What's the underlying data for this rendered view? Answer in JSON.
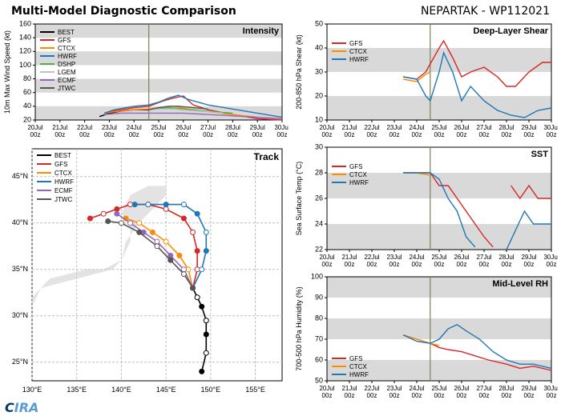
{
  "main_title": "Multi-Model Diagnostic Comparison",
  "storm_id": "NEPARTAK - WP112021",
  "title_fontsize": 14,
  "logo_text_1": "C",
  "logo_text_2": "IRA",
  "time_axis": {
    "ticks": [
      0,
      1,
      2,
      3,
      4,
      5,
      6,
      7,
      8,
      9,
      10
    ],
    "labels": [
      "20Jul\n00z",
      "21Jul\n00z",
      "22Jul\n00z",
      "23Jul\n00z",
      "24Jul\n00z",
      "25Jul\n00z",
      "26Jul\n00z",
      "27Jul\n00z",
      "28Jul\n00z",
      "29Jul\n00z",
      "30Jul\n00z"
    ],
    "now_line": 4.6
  },
  "colors": {
    "BEST": "#000000",
    "GFS": "#d62728",
    "CTCX": "#ff8c00",
    "HWRF": "#1f77b4",
    "DSHP": "#4daf4a",
    "LGEM": "#c0c0c0",
    "ECMF": "#9467bd",
    "JTWC": "#555555",
    "band": "#d9d9d9",
    "grid": "#bfbfbf",
    "axis": "#000000",
    "bg": "#ffffff",
    "now": "#7f7f5a"
  },
  "panels": {
    "intensity": {
      "title": "Intensity",
      "ylabel": "10m Max Wind Speed (kt)",
      "ylim": [
        20,
        160
      ],
      "ytick_step": 20,
      "bands": [
        [
          20,
          40
        ],
        [
          60,
          80
        ],
        [
          100,
          120
        ],
        [
          140,
          160
        ]
      ],
      "line_width": 1.4,
      "label_fontsize": 9,
      "series": {
        "BEST": [
          [
            2.6,
            25
          ],
          [
            3.0,
            30
          ],
          [
            3.5,
            33
          ],
          [
            4.0,
            35
          ],
          [
            4.4,
            35
          ],
          [
            4.6,
            35
          ]
        ],
        "GFS": [
          [
            2.8,
            30
          ],
          [
            3.2,
            33
          ],
          [
            4.0,
            38
          ],
          [
            4.6,
            40
          ],
          [
            5.2,
            48
          ],
          [
            5.6,
            52
          ],
          [
            6.0,
            55
          ],
          [
            6.4,
            42
          ],
          [
            7.0,
            35
          ],
          [
            8.0,
            28
          ],
          [
            9.0,
            22
          ],
          [
            10.0,
            20
          ]
        ],
        "CTCX": [
          [
            2.8,
            30
          ],
          [
            3.2,
            32
          ],
          [
            4.0,
            35
          ],
          [
            4.6,
            36
          ],
          [
            5.0,
            38
          ],
          [
            5.6,
            40
          ],
          [
            6.2,
            36
          ],
          [
            7.0,
            32
          ],
          [
            8.0,
            28
          ],
          [
            9.0,
            24
          ]
        ],
        "HWRF": [
          [
            2.8,
            30
          ],
          [
            3.2,
            35
          ],
          [
            4.0,
            40
          ],
          [
            4.6,
            42
          ],
          [
            5.0,
            46
          ],
          [
            5.4,
            52
          ],
          [
            5.8,
            56
          ],
          [
            6.2,
            50
          ],
          [
            7.0,
            42
          ],
          [
            8.0,
            36
          ],
          [
            9.0,
            30
          ],
          [
            10.0,
            24
          ]
        ],
        "DSHP": [
          [
            4.6,
            35
          ],
          [
            5.0,
            37
          ],
          [
            5.4,
            38
          ],
          [
            6.0,
            36
          ],
          [
            6.6,
            34
          ],
          [
            7.2,
            32
          ],
          [
            8.0,
            30
          ]
        ],
        "LGEM": [
          [
            4.6,
            35
          ],
          [
            5.0,
            36
          ],
          [
            5.6,
            36
          ],
          [
            6.2,
            34
          ],
          [
            7.0,
            32
          ],
          [
            7.6,
            30
          ]
        ],
        "ECMF": [
          [
            2.8,
            28
          ],
          [
            3.5,
            30
          ],
          [
            4.2,
            30
          ],
          [
            5.0,
            30
          ],
          [
            6.0,
            30
          ],
          [
            7.0,
            28
          ],
          [
            8.0,
            26
          ],
          [
            9.0,
            24
          ],
          [
            10.0,
            22
          ]
        ],
        "JTWC": [
          [
            4.6,
            35
          ],
          [
            5.0,
            38
          ],
          [
            5.4,
            40
          ],
          [
            5.8,
            40
          ],
          [
            6.4,
            38
          ],
          [
            7.0,
            36
          ]
        ]
      },
      "legend": [
        "BEST",
        "GFS",
        "CTCX",
        "HWRF",
        "DSHP",
        "LGEM",
        "ECMF",
        "JTWC"
      ]
    },
    "shear": {
      "title": "Deep-Layer Shear",
      "ylabel": "200-850 hPa Shear (kt)",
      "ylim": [
        10,
        50
      ],
      "ytick_step": 10,
      "bands": [
        [
          10,
          20
        ],
        [
          30,
          40
        ]
      ],
      "line_width": 1.4,
      "label_fontsize": 9,
      "series": {
        "GFS": [
          [
            3.4,
            28
          ],
          [
            4.0,
            27
          ],
          [
            4.4,
            30
          ],
          [
            4.7,
            35
          ],
          [
            5.0,
            40
          ],
          [
            5.2,
            43
          ],
          [
            5.6,
            36
          ],
          [
            6.0,
            28
          ],
          [
            6.4,
            30
          ],
          [
            7.0,
            32
          ],
          [
            7.6,
            28
          ],
          [
            8.0,
            24
          ],
          [
            8.4,
            24
          ],
          [
            9.0,
            30
          ],
          [
            9.6,
            34
          ],
          [
            10.0,
            34
          ]
        ],
        "CTCX": [
          [
            3.4,
            27
          ],
          [
            4.0,
            26
          ],
          [
            4.4,
            29
          ],
          [
            4.6,
            30
          ]
        ],
        "HWRF": [
          [
            3.4,
            28
          ],
          [
            4.0,
            27
          ],
          [
            4.4,
            20
          ],
          [
            4.6,
            18
          ],
          [
            5.0,
            30
          ],
          [
            5.2,
            38
          ],
          [
            5.6,
            30
          ],
          [
            6.0,
            18
          ],
          [
            6.4,
            24
          ],
          [
            7.0,
            18
          ],
          [
            7.6,
            14
          ],
          [
            8.2,
            12
          ],
          [
            8.8,
            11
          ],
          [
            9.4,
            14
          ],
          [
            10.0,
            15
          ]
        ]
      },
      "legend": [
        "GFS",
        "CTCX",
        "HWRF"
      ]
    },
    "sst": {
      "title": "SST",
      "ylabel": "Sea Surface Temp (°C)",
      "ylim": [
        22,
        30
      ],
      "ytick_step": 2,
      "bands": [
        [
          22,
          24
        ],
        [
          26,
          28
        ]
      ],
      "line_width": 1.4,
      "label_fontsize": 9,
      "series": {
        "GFS": [
          [
            3.4,
            28
          ],
          [
            4.0,
            28
          ],
          [
            4.6,
            28
          ],
          [
            5.0,
            27
          ],
          [
            5.4,
            27
          ],
          [
            5.8,
            26
          ],
          [
            6.2,
            25
          ],
          [
            6.6,
            24
          ],
          [
            7.0,
            23
          ],
          [
            7.4,
            22.2
          ]
        ],
        "CTCX": [
          [
            3.4,
            28
          ],
          [
            4.0,
            28
          ],
          [
            4.6,
            27.8
          ]
        ],
        "HWRF": [
          [
            3.4,
            28
          ],
          [
            4.0,
            28
          ],
          [
            4.6,
            28
          ],
          [
            5.0,
            27.5
          ],
          [
            5.4,
            26
          ],
          [
            5.8,
            25
          ],
          [
            6.2,
            23
          ],
          [
            6.6,
            22.2
          ]
        ],
        "GFS2": [
          [
            8.2,
            27
          ],
          [
            8.6,
            26
          ],
          [
            9.0,
            27
          ],
          [
            9.4,
            26
          ],
          [
            10.0,
            26
          ]
        ],
        "HWRF2": [
          [
            8.0,
            22
          ],
          [
            8.4,
            23.5
          ],
          [
            8.8,
            25
          ],
          [
            9.2,
            24
          ],
          [
            9.6,
            24
          ],
          [
            10.0,
            24
          ]
        ]
      },
      "legend": [
        "GFS",
        "CTCX",
        "HWRF"
      ]
    },
    "rh": {
      "title": "Mid-Level RH",
      "ylabel": "700-500 hPa Humidity (%)",
      "ylim": [
        50,
        100
      ],
      "ytick_step": 10,
      "bands": [
        [
          50,
          60
        ],
        [
          70,
          80
        ],
        [
          90,
          100
        ]
      ],
      "line_width": 1.4,
      "label_fontsize": 9,
      "series": {
        "GFS": [
          [
            3.4,
            72
          ],
          [
            4.0,
            70
          ],
          [
            4.6,
            68
          ],
          [
            5.0,
            66
          ],
          [
            5.4,
            65
          ],
          [
            6.0,
            64
          ],
          [
            6.6,
            62
          ],
          [
            7.2,
            60
          ],
          [
            8.0,
            58
          ],
          [
            8.6,
            56
          ],
          [
            9.2,
            57
          ],
          [
            10.0,
            55
          ]
        ],
        "CTCX": [
          [
            3.4,
            72
          ],
          [
            4.0,
            70
          ],
          [
            4.6,
            68
          ],
          [
            5.0,
            67
          ]
        ],
        "HWRF": [
          [
            3.4,
            72
          ],
          [
            4.0,
            69
          ],
          [
            4.6,
            68
          ],
          [
            5.0,
            70
          ],
          [
            5.4,
            75
          ],
          [
            5.8,
            77
          ],
          [
            6.2,
            74
          ],
          [
            6.8,
            70
          ],
          [
            7.4,
            64
          ],
          [
            8.0,
            60
          ],
          [
            8.6,
            58
          ],
          [
            9.2,
            58
          ],
          [
            10.0,
            56
          ]
        ]
      },
      "legend": [
        "GFS",
        "CTCX",
        "HWRF"
      ]
    },
    "track": {
      "title": "Track",
      "xlabel_suffix": "°E",
      "ylabel_suffix": "°N",
      "xlim": [
        130,
        158
      ],
      "xtick_step": 5,
      "ylim": [
        23,
        48
      ],
      "ytick_step": 5,
      "line_width": 1.6,
      "marker_size": 3,
      "label_fontsize": 9,
      "coast": [
        [
          [
            130,
            31
          ],
          [
            131,
            33
          ],
          [
            132,
            34
          ],
          [
            134,
            34.5
          ],
          [
            136,
            35
          ],
          [
            138,
            35
          ],
          [
            140,
            36
          ],
          [
            141,
            38
          ],
          [
            141,
            40
          ],
          [
            140,
            41
          ],
          [
            141,
            43
          ],
          [
            143,
            44
          ],
          [
            145,
            44
          ],
          [
            145,
            43
          ],
          [
            144,
            42
          ],
          [
            143,
            41
          ],
          [
            142,
            40
          ],
          [
            140.5,
            38
          ],
          [
            140,
            36
          ],
          [
            139,
            35
          ],
          [
            137,
            34.5
          ],
          [
            135,
            34
          ],
          [
            133,
            33.5
          ],
          [
            131,
            33
          ],
          [
            130,
            32
          ],
          [
            130,
            31
          ]
        ]
      ],
      "series": {
        "BEST": [
          [
            149,
            24
          ],
          [
            149.5,
            26
          ],
          [
            149.5,
            28
          ],
          [
            149.5,
            29.5
          ],
          [
            149,
            31
          ],
          [
            148.5,
            32
          ],
          [
            148,
            33
          ]
        ],
        "GFS": [
          [
            148,
            33
          ],
          [
            148.5,
            35
          ],
          [
            148.5,
            37
          ],
          [
            148,
            39
          ],
          [
            147,
            40.5
          ],
          [
            145,
            41.5
          ],
          [
            143,
            42
          ],
          [
            141,
            42
          ],
          [
            139.5,
            41.5
          ],
          [
            138,
            41
          ],
          [
            136.5,
            40.5
          ]
        ],
        "CTCX": [
          [
            148,
            33
          ],
          [
            147.5,
            35
          ],
          [
            146.5,
            36.5
          ],
          [
            145,
            38
          ],
          [
            143.5,
            39
          ],
          [
            142,
            40
          ],
          [
            140.5,
            40.5
          ]
        ],
        "HWRF": [
          [
            148,
            33
          ],
          [
            149,
            35
          ],
          [
            149.5,
            37
          ],
          [
            149.5,
            39
          ],
          [
            148.5,
            41
          ],
          [
            147,
            42
          ],
          [
            145,
            42
          ],
          [
            143,
            42
          ],
          [
            141.5,
            42
          ]
        ],
        "ECMF": [
          [
            148,
            33
          ],
          [
            147,
            35
          ],
          [
            145.5,
            36.5
          ],
          [
            144,
            38
          ],
          [
            142.5,
            39
          ],
          [
            141,
            40
          ],
          [
            139.5,
            41
          ]
        ],
        "JTWC": [
          [
            148,
            33
          ],
          [
            147,
            34.5
          ],
          [
            145.5,
            36
          ],
          [
            144,
            37.5
          ],
          [
            142,
            39
          ],
          [
            140,
            40
          ],
          [
            138.5,
            40.2
          ]
        ]
      },
      "legend": [
        "BEST",
        "GFS",
        "CTCX",
        "HWRF",
        "ECMF",
        "JTWC"
      ]
    }
  }
}
